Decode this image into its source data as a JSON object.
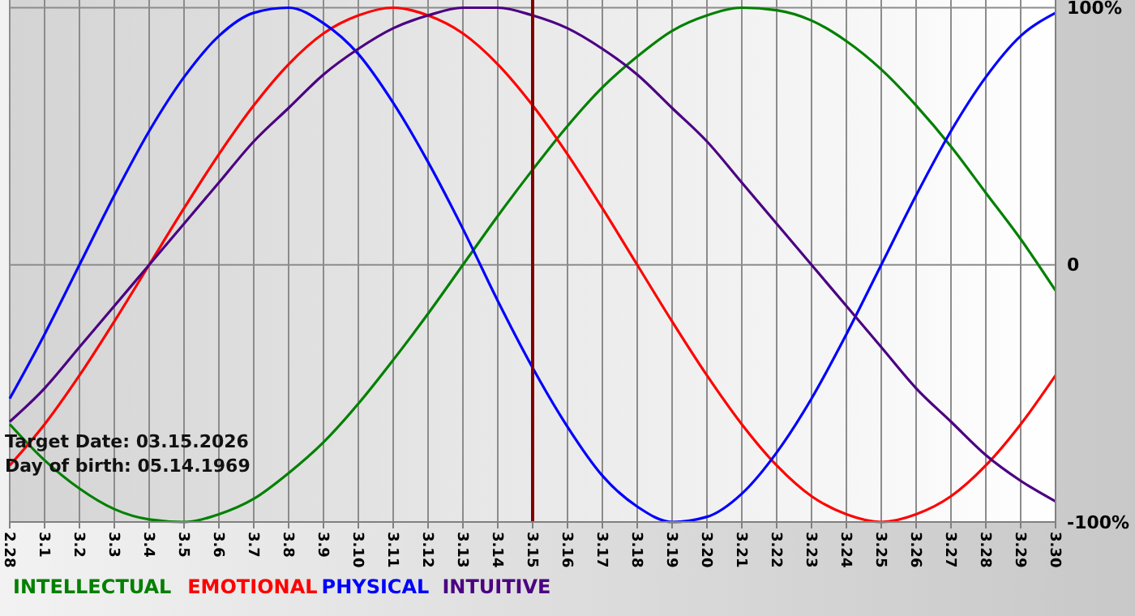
{
  "chart_data": {
    "type": "line",
    "categories": [
      "2.28",
      "3.1",
      "3.2",
      "3.3",
      "3.4",
      "3.5",
      "3.6",
      "3.7",
      "3.8",
      "3.9",
      "3.10",
      "3.11",
      "3.12",
      "3.13",
      "3.14",
      "3.15",
      "3.16",
      "3.17",
      "3.18",
      "3.19",
      "3.20",
      "3.21",
      "3.22",
      "3.23",
      "3.24",
      "3.25",
      "3.26",
      "3.27",
      "3.28",
      "3.29",
      "3.30"
    ],
    "series": [
      {
        "name": "INTELLECTUAL",
        "color": "#008000",
        "values": [
          -62,
          -76,
          -87,
          -95,
          -99,
          -100,
          -97,
          -91,
          -81,
          -69,
          -54,
          -37,
          -19,
          0,
          19,
          37,
          54,
          69,
          81,
          91,
          97,
          100,
          99,
          95,
          87,
          76,
          62,
          46,
          28,
          10,
          -10
        ]
      },
      {
        "name": "EMOTIONAL",
        "color": "#ff0000",
        "values": [
          -78,
          -62,
          -43,
          -22,
          0,
          22,
          43,
          62,
          78,
          90,
          97,
          100,
          97,
          90,
          78,
          62,
          43,
          22,
          0,
          -22,
          -43,
          -62,
          -78,
          -90,
          -97,
          -100,
          -97,
          -90,
          -78,
          -62,
          -43
        ]
      },
      {
        "name": "PHYSICAL",
        "color": "#0000ff",
        "values": [
          -52,
          -27,
          0,
          27,
          52,
          73,
          89,
          98,
          100,
          94,
          82,
          63,
          40,
          14,
          -14,
          -40,
          -63,
          -82,
          -94,
          -100,
          -98,
          -89,
          -73,
          -52,
          -27,
          0,
          27,
          52,
          73,
          89,
          98
        ]
      },
      {
        "name": "INTUITIVE",
        "color": "#4b0082",
        "values": [
          -61,
          -48,
          -32,
          -16,
          0,
          16,
          32,
          48,
          61,
          74,
          84,
          92,
          97,
          100,
          100,
          97,
          92,
          84,
          74,
          61,
          48,
          32,
          16,
          0,
          -16,
          -32,
          -48,
          -61,
          -74,
          -84,
          -92
        ]
      }
    ],
    "ylim": [
      -100,
      103
    ],
    "yticks": [
      {
        "value": 100,
        "label": "100%"
      },
      0,
      {
        "value": -100,
        "label": "-100%"
      }
    ],
    "grid": true,
    "legend": "bottom",
    "ref_lines": [
      {
        "axis": "x",
        "value": "3.15",
        "color": "#800000"
      }
    ],
    "annotations": [
      "Target Date: 03.15.2026",
      "Day of birth: 05.14.1969"
    ]
  }
}
